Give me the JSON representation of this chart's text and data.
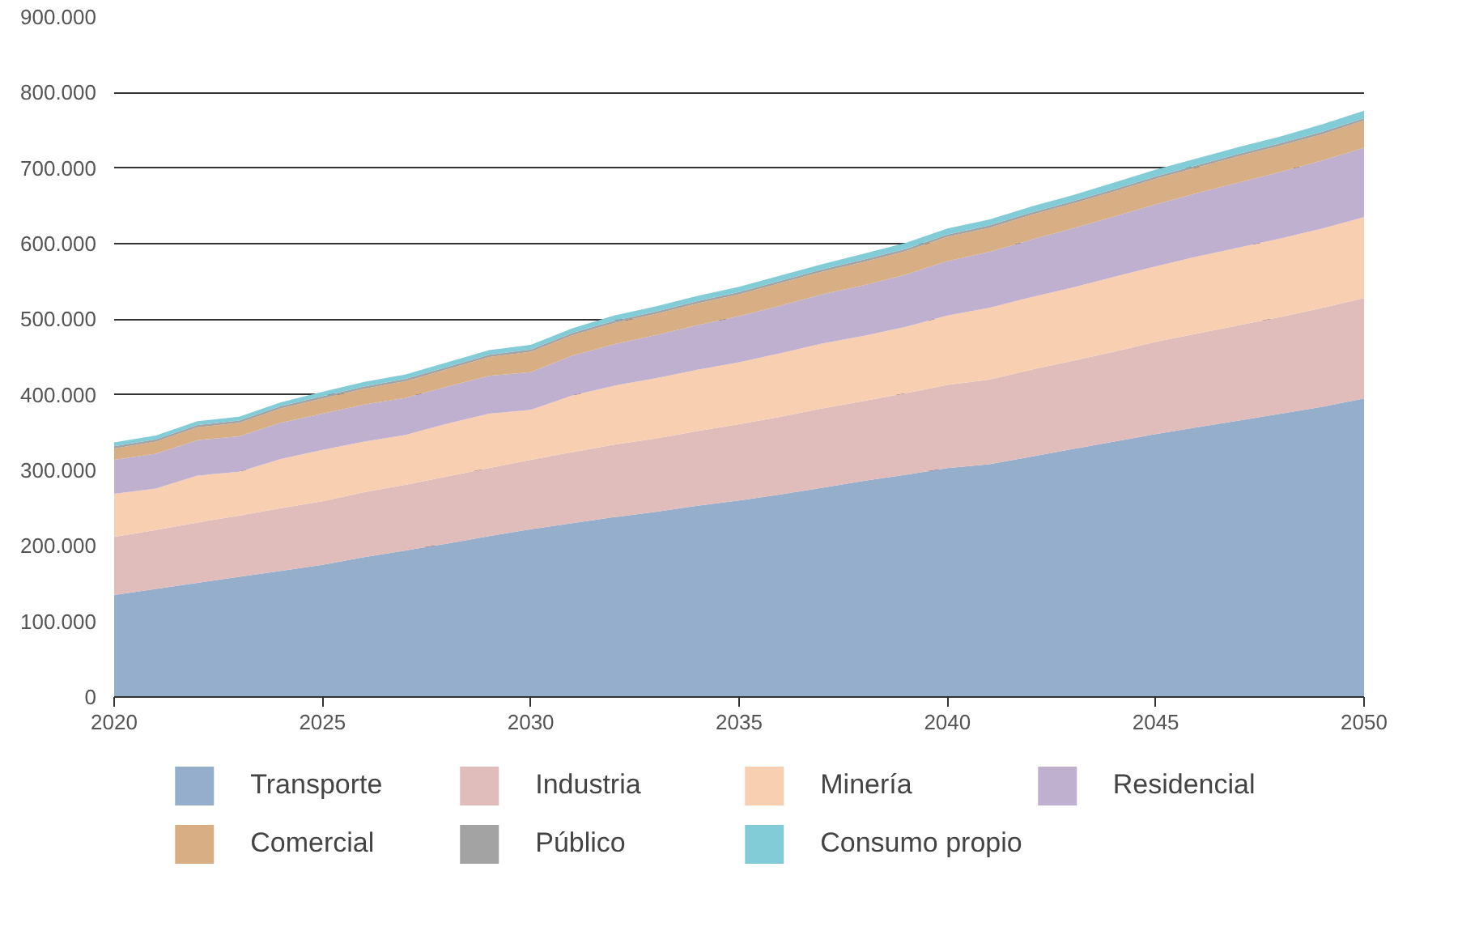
{
  "chart_data": {
    "type": "area",
    "stacked": true,
    "x": [
      2020,
      2021,
      2022,
      2023,
      2024,
      2025,
      2026,
      2027,
      2028,
      2029,
      2030,
      2031,
      2032,
      2033,
      2034,
      2035,
      2036,
      2037,
      2038,
      2039,
      2040,
      2041,
      2042,
      2043,
      2044,
      2045,
      2046,
      2047,
      2048,
      2049,
      2050
    ],
    "series": [
      {
        "name": "Transporte",
        "color": "#95aecb",
        "values": [
          135000,
          143000,
          151000,
          159000,
          167000,
          175000,
          185000,
          194000,
          203000,
          213000,
          222000,
          230000,
          238000,
          245000,
          253000,
          260000,
          268000,
          277000,
          286000,
          294000,
          303000,
          308000,
          318000,
          328000,
          338000,
          348000,
          357000,
          366000,
          375000,
          384000,
          395000
        ]
      },
      {
        "name": "Industria",
        "color": "#e0bcbb",
        "values": [
          77000,
          78000,
          80000,
          81000,
          83000,
          84000,
          86000,
          87000,
          89000,
          90000,
          92000,
          94000,
          96000,
          97000,
          99000,
          101000,
          103000,
          105000,
          106000,
          108000,
          110000,
          112000,
          115000,
          117000,
          119000,
          122000,
          124000,
          126000,
          128000,
          131000,
          133000
        ]
      },
      {
        "name": "Minería",
        "color": "#f9cfb2",
        "values": [
          57000,
          55000,
          62000,
          58000,
          65000,
          68000,
          67000,
          66000,
          70000,
          72000,
          66000,
          75000,
          78000,
          80000,
          81000,
          82000,
          84000,
          86000,
          86000,
          88000,
          92000,
          95000,
          96000,
          97000,
          99000,
          100000,
          102000,
          103000,
          104000,
          105000,
          107000
        ]
      },
      {
        "name": "Residencial",
        "color": "#bfb0cf",
        "values": [
          45000,
          46000,
          47000,
          47000,
          48000,
          48000,
          49000,
          49000,
          49000,
          50000,
          50000,
          53000,
          55000,
          57000,
          59000,
          61000,
          63000,
          65000,
          67000,
          69000,
          72000,
          74000,
          76000,
          78000,
          80000,
          82000,
          84000,
          86000,
          88000,
          90000,
          92000
        ]
      },
      {
        "name": "Comercial",
        "color": "#d8ae84",
        "values": [
          15000,
          16000,
          17000,
          18000,
          19000,
          20000,
          21000,
          22000,
          23000,
          25000,
          27000,
          27000,
          28000,
          28000,
          29000,
          29000,
          30000,
          30000,
          31000,
          31000,
          32000,
          32000,
          33000,
          33000,
          33000,
          34000,
          34000,
          35000,
          35000,
          35000,
          36000
        ]
      },
      {
        "name": "Público",
        "color": "#a3a3a3",
        "values": [
          3000,
          3000,
          3000,
          3000,
          3000,
          3000,
          3000,
          3000,
          3000,
          3000,
          3000,
          3000,
          3000,
          3000,
          3000,
          3000,
          3000,
          3000,
          3000,
          3000,
          3000,
          3000,
          3000,
          3000,
          3000,
          3000,
          3000,
          3000,
          3000,
          3000,
          3000
        ]
      },
      {
        "name": "Consumo propio",
        "color": "#82ccd8",
        "values": [
          5000,
          5000,
          5000,
          5000,
          5000,
          6000,
          6000,
          6000,
          6000,
          6000,
          6000,
          6000,
          7000,
          7000,
          7000,
          7000,
          7000,
          7000,
          8000,
          8000,
          8000,
          8000,
          8000,
          8000,
          9000,
          9000,
          9000,
          9000,
          9000,
          10000,
          10000
        ]
      }
    ],
    "xlim": [
      2020,
      2050
    ],
    "xticks": [
      2020,
      2025,
      2030,
      2035,
      2040,
      2045,
      2050
    ],
    "ylim": [
      0,
      900000
    ],
    "yticks": [
      {
        "value": 0,
        "label": "0"
      },
      {
        "value": 100000,
        "label": "100.000"
      },
      {
        "value": 200000,
        "label": "200.000"
      },
      {
        "value": 300000,
        "label": "300.000"
      },
      {
        "value": 400000,
        "label": "400.000"
      },
      {
        "value": 500000,
        "label": "500.000"
      },
      {
        "value": 600000,
        "label": "600.000"
      },
      {
        "value": 700000,
        "label": "700.000"
      },
      {
        "value": 800000,
        "label": "800.000"
      },
      {
        "value": 900000,
        "label": "900.000"
      }
    ],
    "grid": "y",
    "legend": "bottom"
  }
}
